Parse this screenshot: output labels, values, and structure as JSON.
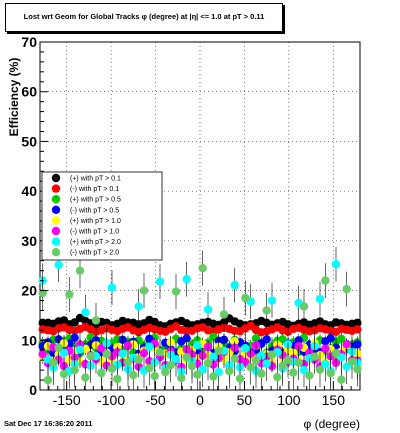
{
  "title": "Lost wrt Geom for Global Tracks  φ (degree) at |η| <= 1.0 at pT > 0.11",
  "footer": "Sat Dec 17 16:36:20 2011",
  "chart_data": {
    "type": "scatter",
    "title": "Lost wrt Geom for Global Tracks  φ (degree) at |η| <= 1.0 at pT > 0.11",
    "xlabel": "φ (degree)",
    "ylabel": "Efficiency (%)",
    "xlim": [
      -180,
      180
    ],
    "ylim": [
      0,
      70
    ],
    "xticks": [
      -150,
      -100,
      -50,
      0,
      50,
      100,
      150
    ],
    "yticks": [
      0,
      10,
      20,
      30,
      40,
      50,
      60,
      70
    ],
    "ytick_labels": [
      "0",
      "10",
      "20",
      "30",
      "40",
      "50",
      "60",
      "70"
    ],
    "xtick_labels": [
      "-150",
      "-100",
      "-50",
      "0",
      "50",
      "100",
      "150"
    ],
    "grid": "dotted, both axes",
    "legend_position": "left, middle",
    "n_bins": 60,
    "series": [
      {
        "name": "(+) with pT > 0.1",
        "color": "#000000",
        "values": [
          13.5,
          13.5,
          13.3,
          13.8,
          14.0,
          13.2,
          13.6,
          14.5,
          13.9,
          13.4,
          13.2,
          13.7,
          13.5,
          13.0,
          13.3,
          13.9,
          13.6,
          13.5,
          13.2,
          13.4,
          14.1,
          13.7,
          13.0,
          12.8,
          13.3,
          13.6,
          13.9,
          13.4,
          13.0,
          13.2,
          13.5,
          13.7,
          13.3,
          13.1,
          13.6,
          14.4,
          13.8,
          13.3,
          13.0,
          13.2,
          13.4,
          13.9,
          13.5,
          13.1,
          13.4,
          13.7,
          13.2,
          12.9,
          13.3,
          13.6,
          13.1,
          13.4,
          13.8,
          13.2,
          13.0,
          13.6,
          13.4,
          13.1,
          13.3,
          13.5
        ]
      },
      {
        "name": "(-) with pT > 0.1",
        "color": "#ff0000",
        "values": [
          12.2,
          12.0,
          11.8,
          12.4,
          12.6,
          12.1,
          11.9,
          12.3,
          12.7,
          12.2,
          11.7,
          12.0,
          12.4,
          12.1,
          11.8,
          12.3,
          12.6,
          12.0,
          11.6,
          12.1,
          12.5,
          12.2,
          11.9,
          11.7,
          12.3,
          12.8,
          12.1,
          11.8,
          11.9,
          12.4,
          12.6,
          12.0,
          11.7,
          12.2,
          12.5,
          12.3,
          11.9,
          11.8,
          12.4,
          12.9,
          12.1,
          11.6,
          11.8,
          12.2,
          12.6,
          12.0,
          11.7,
          12.3,
          12.5,
          12.1,
          11.8,
          12.0,
          12.4,
          12.2,
          11.9,
          11.7,
          12.3,
          12.1,
          11.9,
          12.2
        ]
      },
      {
        "name": "(+) with pT > 0.5",
        "color": "#00cc00",
        "values": [
          9.5,
          8.2,
          10.1,
          7.6,
          9.8,
          10.4,
          8.8,
          7.4,
          9.2,
          10.6,
          8.5,
          9.9,
          7.8,
          9.4,
          10.2,
          8.1,
          9.7,
          7.5,
          10.0,
          8.9,
          9.3,
          10.5,
          7.9,
          8.6,
          9.6,
          10.3,
          8.4,
          7.7,
          9.1,
          10.0,
          8.3,
          9.5,
          10.7,
          7.6,
          9.0,
          8.7,
          10.1,
          9.4,
          7.8,
          8.9,
          10.4,
          9.2,
          7.5,
          8.8,
          9.9,
          10.2,
          8.0,
          9.6,
          7.7,
          10.5,
          8.6,
          9.3,
          10.0,
          7.9,
          8.4,
          9.7,
          10.3,
          8.2,
          9.1,
          9.6
        ]
      },
      {
        "name": "(-) with pT > 0.5",
        "color": "#0000ff",
        "values": [
          8.8,
          9.6,
          7.4,
          10.2,
          8.1,
          9.3,
          10.5,
          7.9,
          8.6,
          9.1,
          10.0,
          7.6,
          9.4,
          8.3,
          7.8,
          10.1,
          8.9,
          9.7,
          7.3,
          8.5,
          10.3,
          9.0,
          7.7,
          9.5,
          8.2,
          7.5,
          9.8,
          10.4,
          8.0,
          7.6,
          9.2,
          8.7,
          7.4,
          9.9,
          10.1,
          8.4,
          7.8,
          9.6,
          8.9,
          7.3,
          8.1,
          9.4,
          10.2,
          7.9,
          8.6,
          7.5,
          9.3,
          8.8,
          10.0,
          7.7,
          9.1,
          8.3,
          7.6,
          9.8,
          10.4,
          8.5,
          7.4,
          9.0,
          8.7,
          9.2
        ]
      },
      {
        "name": "(+) with pT > 1.0",
        "color": "#ffff00",
        "values": [
          6.5,
          8.8,
          5.9,
          7.2,
          9.4,
          6.1,
          7.8,
          5.6,
          8.3,
          6.9,
          9.0,
          5.8,
          7.5,
          6.3,
          8.6,
          7.0,
          5.7,
          9.2,
          6.6,
          7.9,
          5.5,
          8.4,
          6.8,
          7.3,
          9.6,
          6.0,
          7.7,
          5.9,
          8.1,
          6.4,
          9.3,
          7.1,
          5.6,
          8.7,
          6.2,
          7.6,
          9.8,
          5.8,
          7.4,
          6.7,
          8.9,
          6.1,
          7.2,
          5.7,
          9.1,
          6.5,
          8.0,
          7.5,
          5.9,
          8.5,
          6.3,
          9.4,
          7.0,
          5.6,
          8.2,
          6.8,
          7.7,
          9.0,
          6.0,
          7.3
        ]
      },
      {
        "name": "(-) with pT > 1.0",
        "color": "#ff00ff",
        "values": [
          7.2,
          5.4,
          8.6,
          6.1,
          4.8,
          7.9,
          6.5,
          9.1,
          5.2,
          7.0,
          6.2,
          8.4,
          4.9,
          6.8,
          7.6,
          5.5,
          8.9,
          6.3,
          4.7,
          7.4,
          5.8,
          9.3,
          6.6,
          5.0,
          7.8,
          6.0,
          4.6,
          8.2,
          7.1,
          5.3,
          6.9,
          8.7,
          5.1,
          6.4,
          7.7,
          4.9,
          8.5,
          6.2,
          5.6,
          7.3,
          9.0,
          5.4,
          6.7,
          4.8,
          8.1,
          7.0,
          5.7,
          6.3,
          8.8,
          5.2,
          7.5,
          6.1,
          4.7,
          8.3,
          6.8,
          5.5,
          7.2,
          9.2,
          6.0,
          5.9
        ]
      },
      {
        "name": "(+) with pT > 2.0",
        "color": "#00ffff",
        "values": [
          22.0,
          6.0,
          4.5,
          25.2,
          7.5,
          3.8,
          5.2,
          8.1,
          15.6,
          4.9,
          6.8,
          3.5,
          9.4,
          20.6,
          5.1,
          7.3,
          4.2,
          6.5,
          16.8,
          3.9,
          8.7,
          5.6,
          21.8,
          4.4,
          7.1,
          6.2,
          3.7,
          22.3,
          5.8,
          9.0,
          4.1,
          16.2,
          6.7,
          3.6,
          7.9,
          5.0,
          21.1,
          4.6,
          8.4,
          17.8,
          3.9,
          6.9,
          5.3,
          18.0,
          7.6,
          4.3,
          9.2,
          5.7,
          17.5,
          4.0,
          6.4,
          8.8,
          18.3,
          5.2,
          3.8,
          25.3,
          6.6,
          4.7,
          7.7,
          5.5
        ]
      },
      {
        "name": "(-) with pT > 2.0",
        "color": "#66cc66",
        "values": [
          19.5,
          2.0,
          5.5,
          8.5,
          3.2,
          19.2,
          4.0,
          24.0,
          2.5,
          6.8,
          14.0,
          3.4,
          7.2,
          4.3,
          2.2,
          30.0,
          5.6,
          3.0,
          6.1,
          20.0,
          4.4,
          2.8,
          7.6,
          3.6,
          5.0,
          19.8,
          2.4,
          6.6,
          4.8,
          3.1,
          24.5,
          5.4,
          2.7,
          7.9,
          15.2,
          3.8,
          6.3,
          2.3,
          18.5,
          4.6,
          5.9,
          3.3,
          16.0,
          7.1,
          2.6,
          4.9,
          6.0,
          3.5,
          5.5,
          16.8,
          2.9,
          6.7,
          4.1,
          22.0,
          3.4,
          7.4,
          2.1,
          20.3,
          5.7,
          4.2
        ]
      }
    ]
  }
}
